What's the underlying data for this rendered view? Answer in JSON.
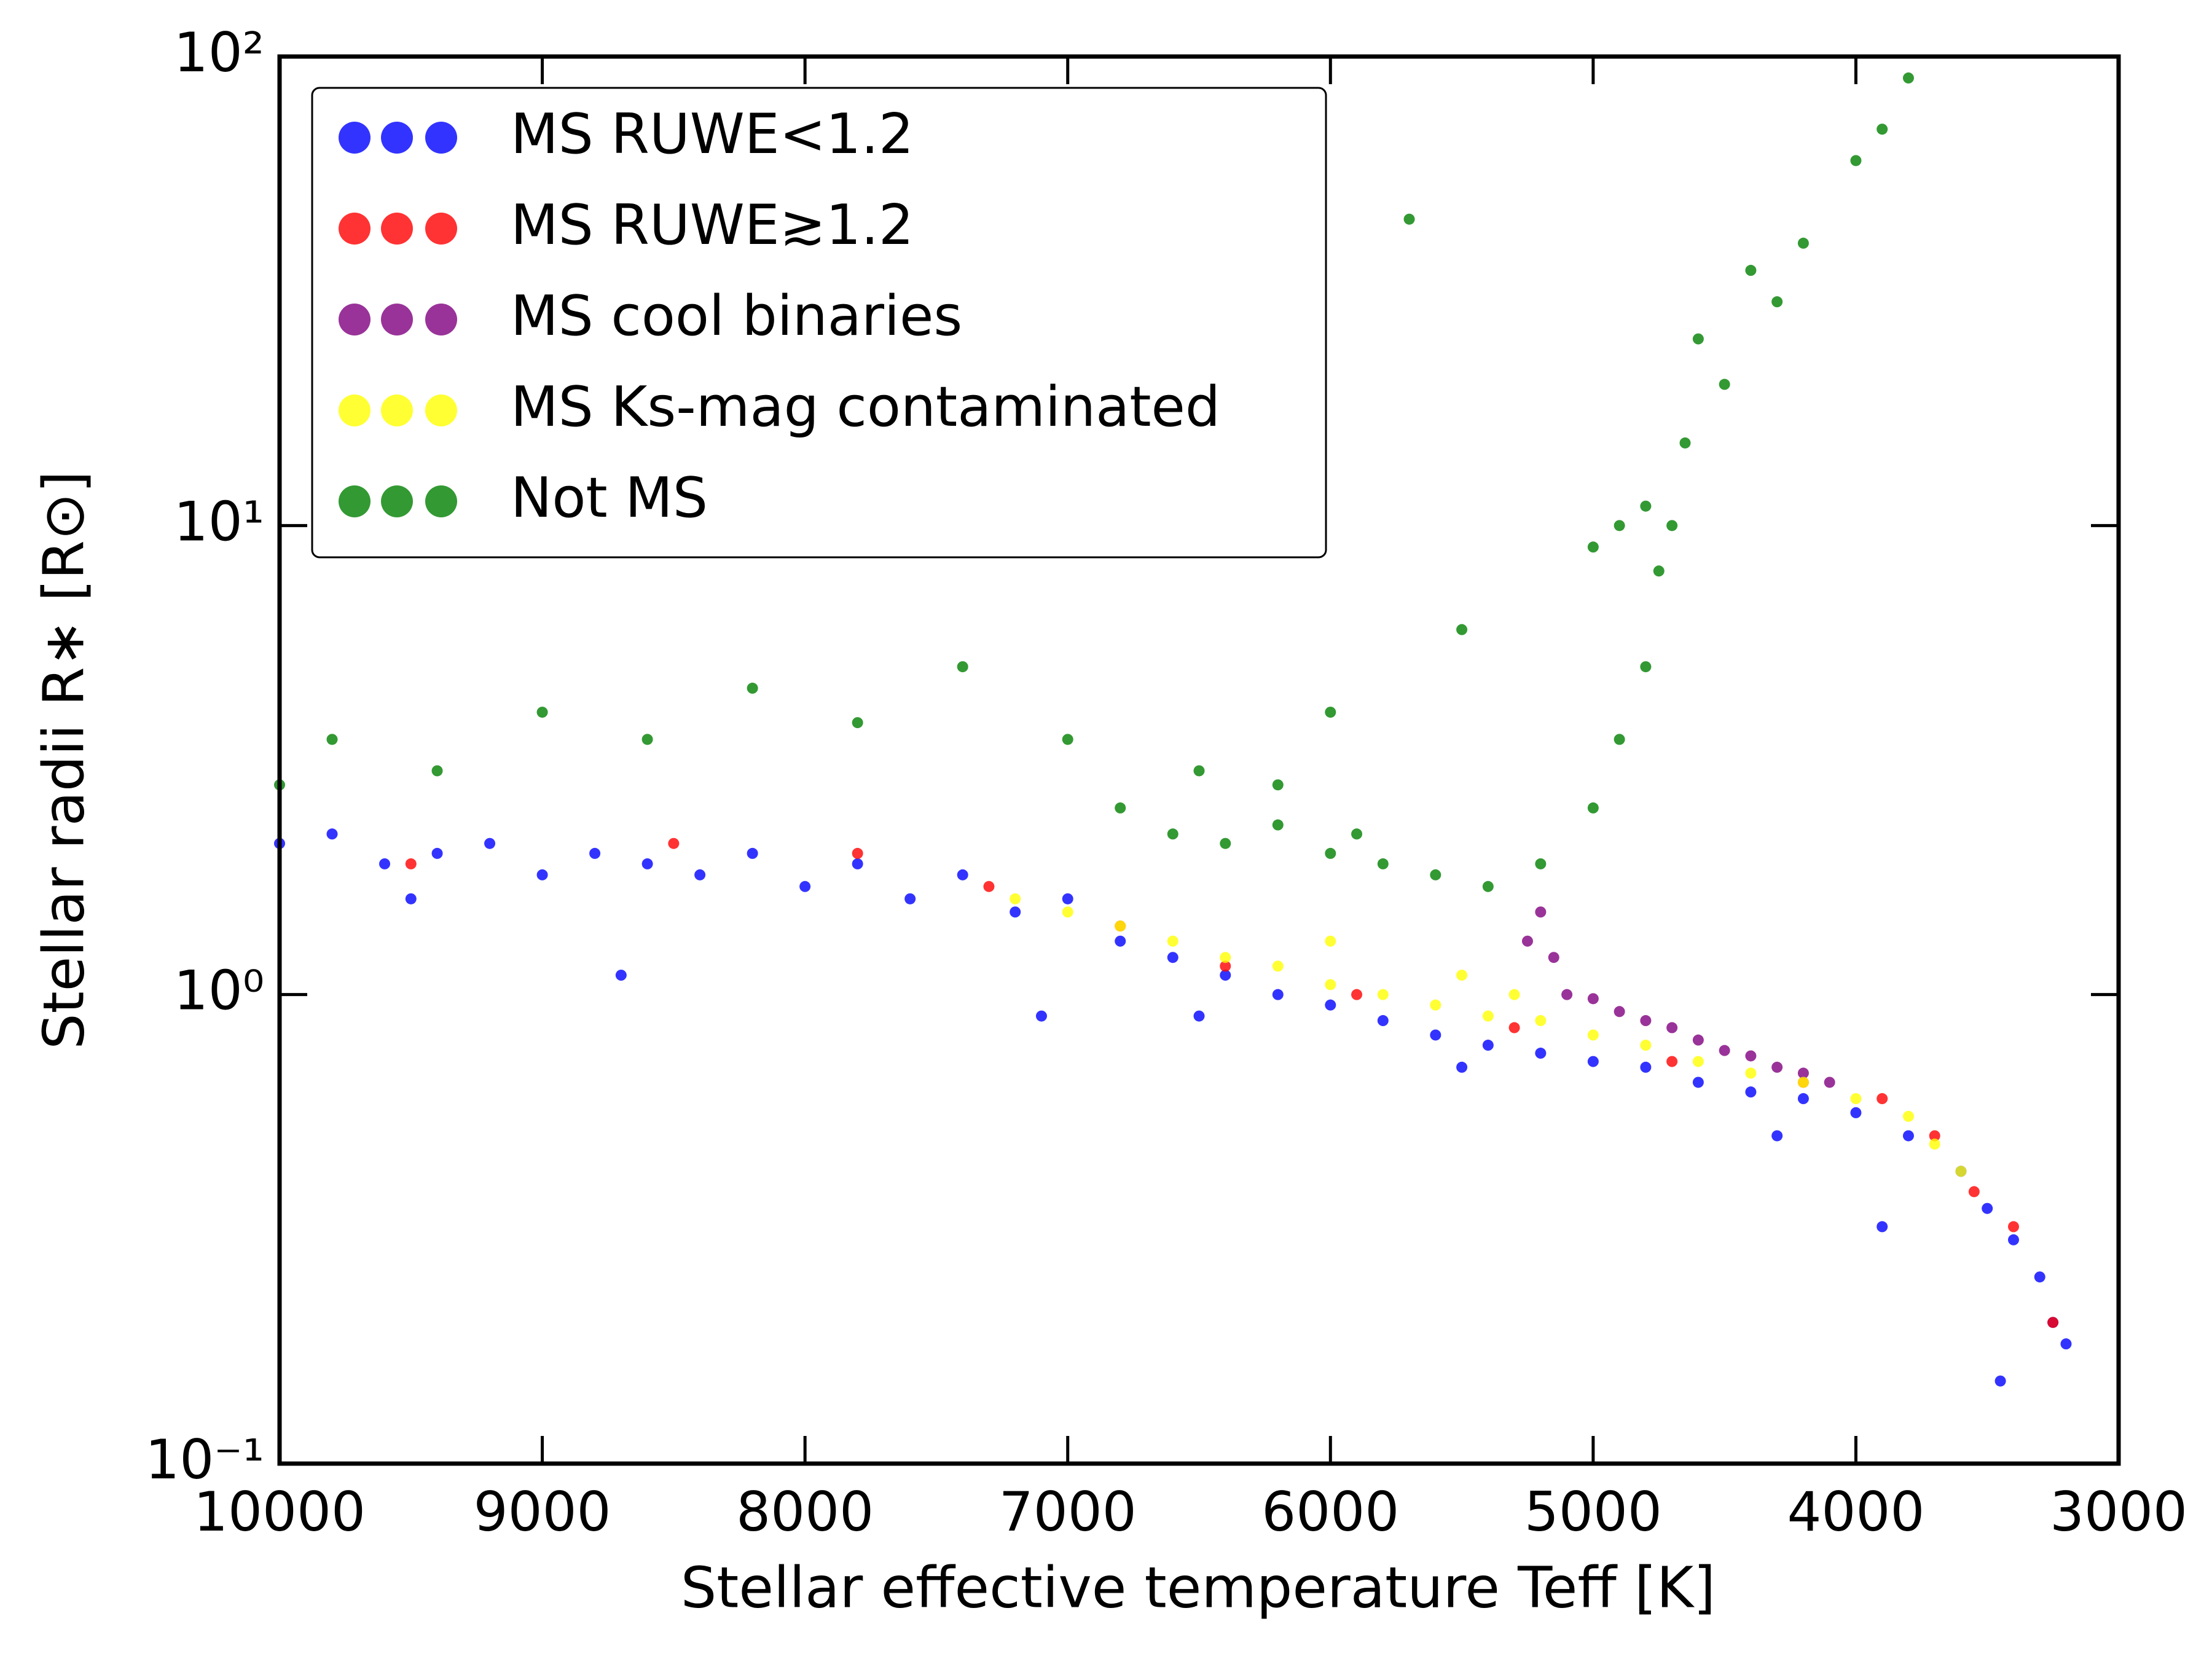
{
  "chart_data": {
    "type": "scatter",
    "xlabel": "Stellar effective temperature Teff [K]",
    "ylabel": "Stellar radii R∗ [R⊙]",
    "xlim": [
      10000,
      3000
    ],
    "xticks": [
      10000,
      9000,
      8000,
      7000,
      6000,
      5000,
      4000,
      3000
    ],
    "ylim": [
      0.1,
      100
    ],
    "yscale": "log",
    "yticks": [
      {
        "value": 0.1,
        "label": "10⁻¹"
      },
      {
        "value": 1,
        "label": "10⁰"
      },
      {
        "value": 10,
        "label": "10¹"
      },
      {
        "value": 100,
        "label": "10²"
      }
    ],
    "legend": "upper left",
    "series": [
      {
        "name": "MS RUWE<1.2",
        "color": "#0000ff",
        "x": [
          10000,
          9800,
          9600,
          9400,
          9200,
          9000,
          8800,
          8600,
          8400,
          8200,
          8000,
          7800,
          7600,
          7400,
          7200,
          7000,
          6800,
          6600,
          6400,
          6200,
          6000,
          5800,
          5600,
          5400,
          5200,
          5000,
          4800,
          4600,
          4400,
          4200,
          4000,
          3800,
          3600,
          3500,
          3400,
          3300,
          3250,
          3200,
          9500,
          8700,
          7100,
          6500,
          5500,
          4300,
          3450,
          3900
        ],
        "values": [
          2.1,
          2.2,
          1.9,
          2.0,
          2.1,
          1.8,
          2.0,
          1.9,
          1.8,
          2.0,
          1.7,
          1.9,
          1.6,
          1.8,
          1.5,
          1.6,
          1.3,
          1.2,
          1.1,
          1.0,
          0.95,
          0.88,
          0.82,
          0.78,
          0.75,
          0.72,
          0.7,
          0.65,
          0.62,
          0.6,
          0.56,
          0.5,
          0.42,
          0.35,
          0.3,
          0.25,
          0.2,
          0.18,
          1.6,
          1.1,
          0.9,
          0.9,
          0.7,
          0.5,
          0.15,
          0.32
        ]
      },
      {
        "name": "MS RUWE≳1.2",
        "color": "#ff0000",
        "x": [
          9500,
          8500,
          7800,
          7300,
          6800,
          6400,
          5900,
          5300,
          4700,
          4200,
          3900,
          3700,
          3550,
          3400,
          3250
        ],
        "values": [
          1.9,
          2.1,
          2.0,
          1.7,
          1.4,
          1.15,
          1.0,
          0.85,
          0.72,
          0.65,
          0.6,
          0.5,
          0.38,
          0.32,
          0.2
        ]
      },
      {
        "name": "MS cool binaries",
        "color": "#800080",
        "x": [
          5250,
          5200,
          5150,
          5100,
          5000,
          4900,
          4800,
          4700,
          4600,
          4500,
          4400,
          4300,
          4200,
          4100
        ],
        "values": [
          1.3,
          1.5,
          1.2,
          1.0,
          0.98,
          0.92,
          0.88,
          0.85,
          0.8,
          0.76,
          0.74,
          0.7,
          0.68,
          0.65
        ]
      },
      {
        "name": "MS Ks-mag contaminated",
        "color": "#ffff00",
        "x": [
          7200,
          7000,
          6800,
          6600,
          6400,
          6200,
          6000,
          5800,
          5600,
          5400,
          5200,
          5000,
          4800,
          4600,
          4400,
          4200,
          4000,
          3800,
          3700,
          3600,
          6000,
          5500,
          5300
        ],
        "values": [
          1.6,
          1.5,
          1.4,
          1.3,
          1.2,
          1.15,
          1.05,
          1.0,
          0.95,
          0.9,
          0.88,
          0.82,
          0.78,
          0.72,
          0.68,
          0.65,
          0.6,
          0.55,
          0.48,
          0.42,
          1.3,
          1.1,
          1.0
        ]
      },
      {
        "name": "Not MS",
        "color": "#008000",
        "x": [
          10000,
          9800,
          9400,
          9000,
          8600,
          8200,
          7800,
          7400,
          7000,
          6800,
          6600,
          6400,
          6200,
          6000,
          5800,
          5600,
          5400,
          5200,
          5000,
          4900,
          4800,
          4750,
          4700,
          4800,
          4900,
          5000,
          4650,
          4500,
          4300,
          4200,
          4000,
          3800,
          6500,
          6000,
          5500,
          5700,
          6200,
          5900,
          4600,
          4400,
          3900
        ],
        "values": [
          2.8,
          3.5,
          3.0,
          4.0,
          3.5,
          4.5,
          3.8,
          5.0,
          3.5,
          2.5,
          2.2,
          2.1,
          2.3,
          2.0,
          1.9,
          1.8,
          1.7,
          1.9,
          2.5,
          3.5,
          5,
          8,
          10,
          11,
          10,
          9,
          15,
          20,
          30,
          40,
          60,
          90,
          3.0,
          4.0,
          6.0,
          45,
          2.8,
          2.2,
          25,
          35,
          70
        ]
      }
    ]
  }
}
